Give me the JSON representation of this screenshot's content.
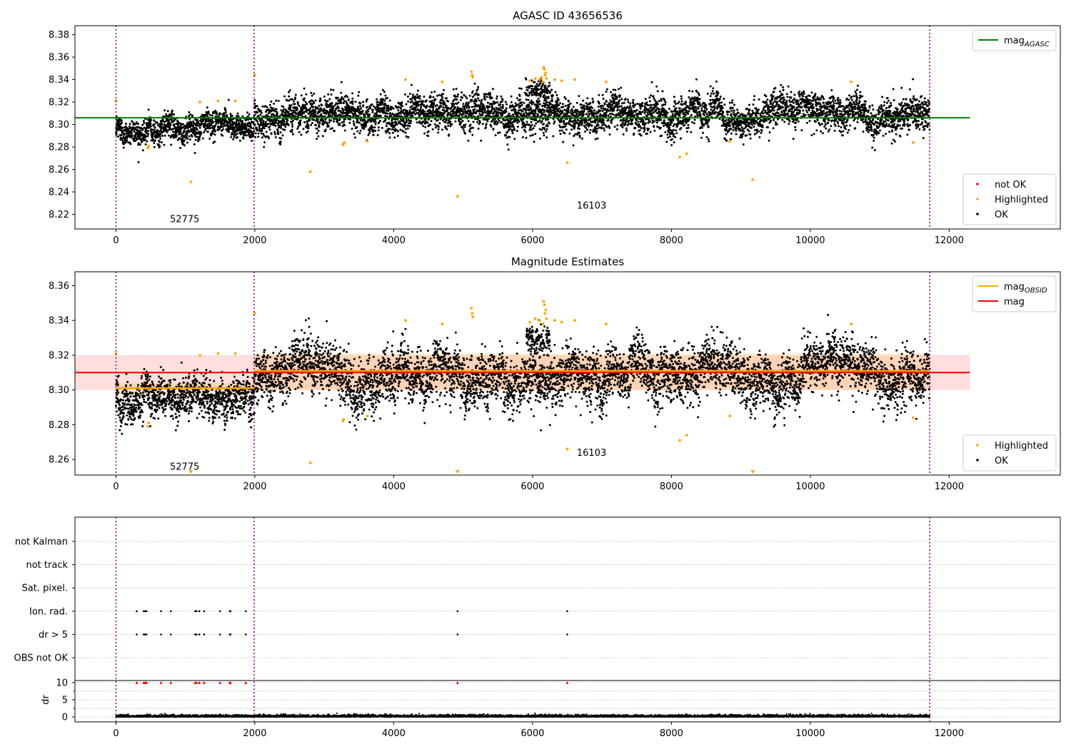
{
  "chart_data": [
    {
      "type": "scatter",
      "title": "AGASC ID 43656536",
      "xlim": [
        -590,
        13600
      ],
      "ylim": [
        8.207,
        8.388
      ],
      "xticks": [
        0,
        2000,
        4000,
        6000,
        8000,
        10000,
        12000
      ],
      "yticks": [
        8.22,
        8.24,
        8.26,
        8.28,
        8.3,
        8.32,
        8.34,
        8.36,
        8.38
      ],
      "ytick_decimals": 2,
      "grid": false,
      "obsid_boundaries": [
        0,
        1990,
        11720
      ],
      "obsid_labels": [
        {
          "text": "52775",
          "x": 990,
          "y": 8.213
        },
        {
          "text": "16103",
          "x": 6850,
          "y": 8.225
        }
      ],
      "hlines": [
        {
          "name": "mag_AGASC",
          "y": 8.306,
          "x": [
            -590,
            12300
          ],
          "color": "#008000"
        }
      ],
      "bands": [],
      "segments": [],
      "segments_ok": [
        {
          "x": [
            0,
            1990
          ],
          "base": 8.298,
          "noise": 0.0055,
          "trend": 0.007
        },
        {
          "x": [
            1990,
            11720
          ],
          "base": 8.31,
          "noise": 0.0075,
          "trend": 0
        }
      ],
      "bright_cluster": {
        "x": [
          5900,
          6250
        ],
        "base": 8.33
      },
      "series": [
        {
          "name": "Highlighted",
          "color": "#ffa500",
          "points": [
            [
              0,
              8.321
            ],
            [
              460,
              8.279
            ],
            [
              470,
              8.281
            ],
            [
              1080,
              8.249
            ],
            [
              1210,
              8.32
            ],
            [
              1470,
              8.321
            ],
            [
              1720,
              8.321
            ],
            [
              2000,
              8.344
            ],
            [
              2800,
              8.258
            ],
            [
              3270,
              8.282
            ],
            [
              3280,
              8.283
            ],
            [
              3290,
              8.284
            ],
            [
              3620,
              8.285
            ],
            [
              4170,
              8.34
            ],
            [
              4700,
              8.338
            ],
            [
              4920,
              8.236
            ],
            [
              5120,
              8.347
            ],
            [
              5130,
              8.344
            ],
            [
              5140,
              8.342
            ],
            [
              5960,
              8.339
            ],
            [
              6040,
              8.341
            ],
            [
              6100,
              8.34
            ],
            [
              6130,
              8.342
            ],
            [
              6150,
              8.338
            ],
            [
              6160,
              8.351
            ],
            [
              6170,
              8.349
            ],
            [
              6180,
              8.344
            ],
            [
              6190,
              8.346
            ],
            [
              6200,
              8.341
            ],
            [
              6320,
              8.34
            ],
            [
              6420,
              8.339
            ],
            [
              6500,
              8.266
            ],
            [
              6610,
              8.34
            ],
            [
              7060,
              8.338
            ],
            [
              8120,
              8.271
            ],
            [
              8220,
              8.274
            ],
            [
              8840,
              8.285
            ],
            [
              9170,
              8.251
            ],
            [
              10590,
              8.338
            ],
            [
              11480,
              8.284
            ]
          ]
        }
      ],
      "legends": [
        {
          "position": "top-right",
          "entries": [
            {
              "label": "mag",
              "sub": "AGASC",
              "kind": "line",
              "color": "#008000"
            }
          ]
        },
        {
          "position": "bottom-right",
          "entries": [
            {
              "label": "not OK",
              "kind": "dot",
              "color": "#ff0000"
            },
            {
              "label": "Highlighted",
              "kind": "dot",
              "color": "#ffa500"
            },
            {
              "label": "OK",
              "kind": "dot",
              "color": "#000000"
            }
          ]
        }
      ]
    },
    {
      "type": "scatter",
      "title": "Magnitude Estimates",
      "xlim": [
        -590,
        13600
      ],
      "ylim": [
        8.251,
        8.368
      ],
      "xticks": [
        0,
        2000,
        4000,
        6000,
        8000,
        10000,
        12000
      ],
      "yticks": [
        8.26,
        8.28,
        8.3,
        8.32,
        8.34,
        8.36
      ],
      "ytick_decimals": 2,
      "grid": false,
      "obsid_boundaries": [
        0,
        1990,
        11720
      ],
      "obsid_labels": [
        {
          "text": "52775",
          "x": 990,
          "y": 8.254
        },
        {
          "text": "16103",
          "x": 6850,
          "y": 8.262
        }
      ],
      "hlines": [
        {
          "name": "mag",
          "y": 8.31,
          "x": [
            -590,
            12300
          ],
          "color": "#ff0000"
        }
      ],
      "bands": [
        {
          "y": [
            8.3,
            8.32
          ],
          "x": [
            -590,
            12300
          ],
          "color": "#ff0000",
          "opacity": 0.13
        },
        {
          "y": [
            8.296,
            8.304
          ],
          "x": [
            0,
            1990
          ],
          "color": "#ffa500",
          "opacity": 0.18
        },
        {
          "y": [
            8.3,
            8.321
          ],
          "x": [
            1990,
            11720
          ],
          "color": "#ffa500",
          "opacity": 0.18
        }
      ],
      "segments": [
        {
          "name": "mag_OBSID",
          "x": [
            0,
            1990
          ],
          "y": 8.301,
          "color": "#ffa500"
        },
        {
          "name": "mag_OBSID",
          "x": [
            1990,
            11720
          ],
          "y": 8.311,
          "color": "#ffa500"
        }
      ],
      "segments_ok": [
        {
          "x": [
            0,
            1990
          ],
          "base": 8.298,
          "noise": 0.0055,
          "trend": 0.007
        },
        {
          "x": [
            1990,
            11720
          ],
          "base": 8.31,
          "noise": 0.0075,
          "trend": 0
        }
      ],
      "bright_cluster": {
        "x": [
          5900,
          6250
        ],
        "base": 8.33
      },
      "series": [
        {
          "name": "Highlighted",
          "color": "#ffa500",
          "points": [
            [
              0,
              8.321
            ],
            [
              460,
              8.279
            ],
            [
              470,
              8.281
            ],
            [
              1210,
              8.32
            ],
            [
              1470,
              8.321
            ],
            [
              1720,
              8.321
            ],
            [
              2000,
              8.344
            ],
            [
              2800,
              8.258
            ],
            [
              3270,
              8.282
            ],
            [
              3280,
              8.283
            ],
            [
              3620,
              8.285
            ],
            [
              4170,
              8.34
            ],
            [
              4700,
              8.338
            ],
            [
              5120,
              8.347
            ],
            [
              5130,
              8.344
            ],
            [
              5140,
              8.342
            ],
            [
              5960,
              8.339
            ],
            [
              6040,
              8.341
            ],
            [
              6100,
              8.34
            ],
            [
              6150,
              8.338
            ],
            [
              6160,
              8.351
            ],
            [
              6170,
              8.349
            ],
            [
              6180,
              8.344
            ],
            [
              6190,
              8.346
            ],
            [
              6200,
              8.341
            ],
            [
              6320,
              8.34
            ],
            [
              6420,
              8.339
            ],
            [
              6500,
              8.266
            ],
            [
              6610,
              8.34
            ],
            [
              7060,
              8.338
            ],
            [
              8120,
              8.271
            ],
            [
              8220,
              8.274
            ],
            [
              8840,
              8.285
            ],
            [
              10590,
              8.338
            ],
            [
              11480,
              8.284
            ]
          ]
        }
      ],
      "offscale_markers": [
        1080,
        4920,
        9170
      ],
      "legends": [
        {
          "position": "top-right",
          "entries": [
            {
              "label": "mag",
              "sub": "OBSID",
              "kind": "line",
              "color": "#ffa500"
            },
            {
              "label": "mag",
              "kind": "line",
              "color": "#ff0000"
            }
          ]
        },
        {
          "position": "bottom-right",
          "entries": [
            {
              "label": "Highlighted",
              "kind": "dot",
              "color": "#ffa500"
            },
            {
              "label": "OK",
              "kind": "dot",
              "color": "#000000"
            }
          ]
        }
      ]
    },
    {
      "type": "scatter",
      "title": "",
      "xlim": [
        -590,
        13600
      ],
      "flag_rows": [
        "not Kalman",
        "not track",
        "Sat. pixel.",
        "Ion. rad.",
        "dr > 5",
        "OBS not OK"
      ],
      "flag_events": {
        "Ion. rad.": [
          300,
          400,
          420,
          440,
          650,
          790,
          1140,
          1160,
          1200,
          1270,
          1500,
          1640,
          1650,
          1870,
          4920,
          6500
        ],
        "dr > 5": [
          300,
          400,
          420,
          440,
          650,
          790,
          1140,
          1160,
          1200,
          1270,
          1500,
          1640,
          1650,
          1870,
          4920,
          6500
        ]
      },
      "dr": {
        "ylabel": "dr",
        "ylim": [
          -0.8,
          10.6
        ],
        "yticks": [
          0,
          5,
          10
        ],
        "clip_value": 10,
        "clip_x": [
          300,
          400,
          420,
          440,
          650,
          790,
          1140,
          1160,
          1200,
          1270,
          1500,
          1640,
          1650,
          1870,
          4920,
          6500
        ],
        "noise_mean": 0.3,
        "x_range": [
          0,
          11720
        ]
      },
      "xticks": [
        0,
        2000,
        4000,
        6000,
        8000,
        10000,
        12000
      ],
      "obsid_boundaries": [
        0,
        1990,
        11720
      ]
    }
  ]
}
